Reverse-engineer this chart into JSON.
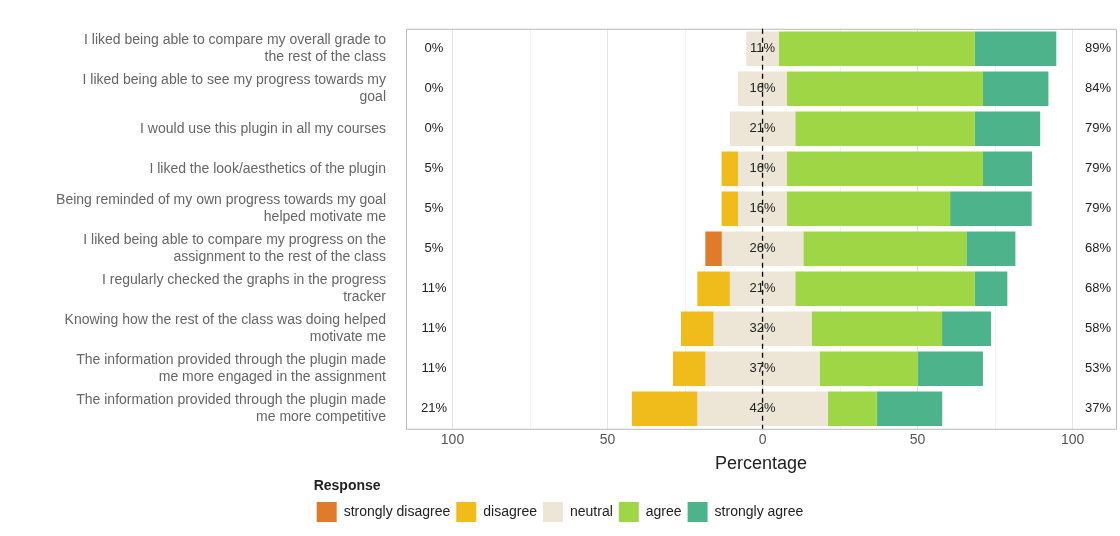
{
  "chart_data": {
    "type": "bar",
    "orientation": "horizontal",
    "xlabel": "Percentage",
    "legend_title": "Response",
    "legend": "bottom",
    "grid": "x",
    "categories": [
      "I liked being able to compare my overall grade to the rest of the class",
      "I liked being able to see my progress towards my goal",
      "I would use this plugin in all my courses",
      "I liked the look/aesthetics of the plugin",
      "Being reminded of my own progress towards my goal helped motivate me",
      "I liked being able to compare my progress on the assignment to the rest of the class",
      "I regularly checked the graphs in the progress tracker",
      "Knowing how the rest of the class was doing helped motivate me",
      "The information provided through the plugin made me more engaged in the assignment",
      "The information provided through the plugin made me more competitive"
    ],
    "xlim": [
      -115,
      114
    ],
    "xticks": [
      {
        "value": -100,
        "label": "100"
      },
      {
        "value": -75,
        "label": null
      },
      {
        "value": -50,
        "label": "50"
      },
      {
        "value": -25,
        "label": null
      },
      0,
      {
        "value": 25,
        "label": null
      },
      50,
      {
        "value": 75,
        "label": null
      },
      100
    ],
    "series": [
      {
        "name": "strongly disagree",
        "color": "#e07b29",
        "values": [
          null,
          null,
          null,
          null,
          null,
          5.3,
          null,
          null,
          null,
          null
        ],
        "base": [
          null,
          null,
          null,
          null,
          null,
          -18.45,
          null,
          null,
          null,
          null
        ]
      },
      {
        "name": "disagree",
        "color": "#f0bc1c",
        "values": [
          null,
          null,
          null,
          5.3,
          5.3,
          null,
          10.5,
          10.5,
          10.5,
          21.1
        ],
        "base": [
          null,
          null,
          null,
          -13.2,
          -13.2,
          null,
          -21.05,
          -26.3,
          -28.9,
          -42.15
        ]
      },
      {
        "name": "neutral",
        "color": "#ede6d6",
        "values": [
          10.5,
          15.8,
          21.1,
          15.8,
          15.8,
          26.3,
          21.1,
          31.6,
          36.8,
          42.1
        ],
        "base": [
          -5.25,
          -7.9,
          -10.55,
          -7.9,
          -7.9,
          -13.15,
          -10.55,
          -15.8,
          -18.4,
          -21.05
        ],
        "value_labels": [
          "11%",
          "16%",
          "21%",
          "16%",
          "16%",
          "26%",
          "21%",
          "32%",
          "37%",
          "42%"
        ]
      },
      {
        "name": "agree",
        "color": "#9fd645",
        "values": [
          63.2,
          63.2,
          57.9,
          63.2,
          52.6,
          52.6,
          57.9,
          42.1,
          31.6,
          15.8
        ],
        "base": [
          5.25,
          7.9,
          10.55,
          7.9,
          7.9,
          13.15,
          10.55,
          15.8,
          18.4,
          21.05
        ]
      },
      {
        "name": "strongly agree",
        "color": "#4db38a",
        "values": [
          26.3,
          21.1,
          21.1,
          15.8,
          26.3,
          15.8,
          10.5,
          15.8,
          21.1,
          21.1
        ],
        "base": [
          68.45,
          71.1,
          68.45,
          71.1,
          60.5,
          65.75,
          68.45,
          57.9,
          50,
          36.85
        ]
      }
    ],
    "ref_lines": [
      {
        "axis": "x",
        "value": 0,
        "color": "#000000",
        "line_style": "dashed"
      }
    ],
    "annotations": [
      "0%",
      "0%",
      "0%",
      "5%",
      "5%",
      "5%",
      "11%",
      "11%",
      "11%",
      "21%",
      "89%",
      "84%",
      "79%",
      "79%",
      "79%",
      "68%",
      "68%",
      "58%",
      "53%",
      "37%"
    ]
  }
}
